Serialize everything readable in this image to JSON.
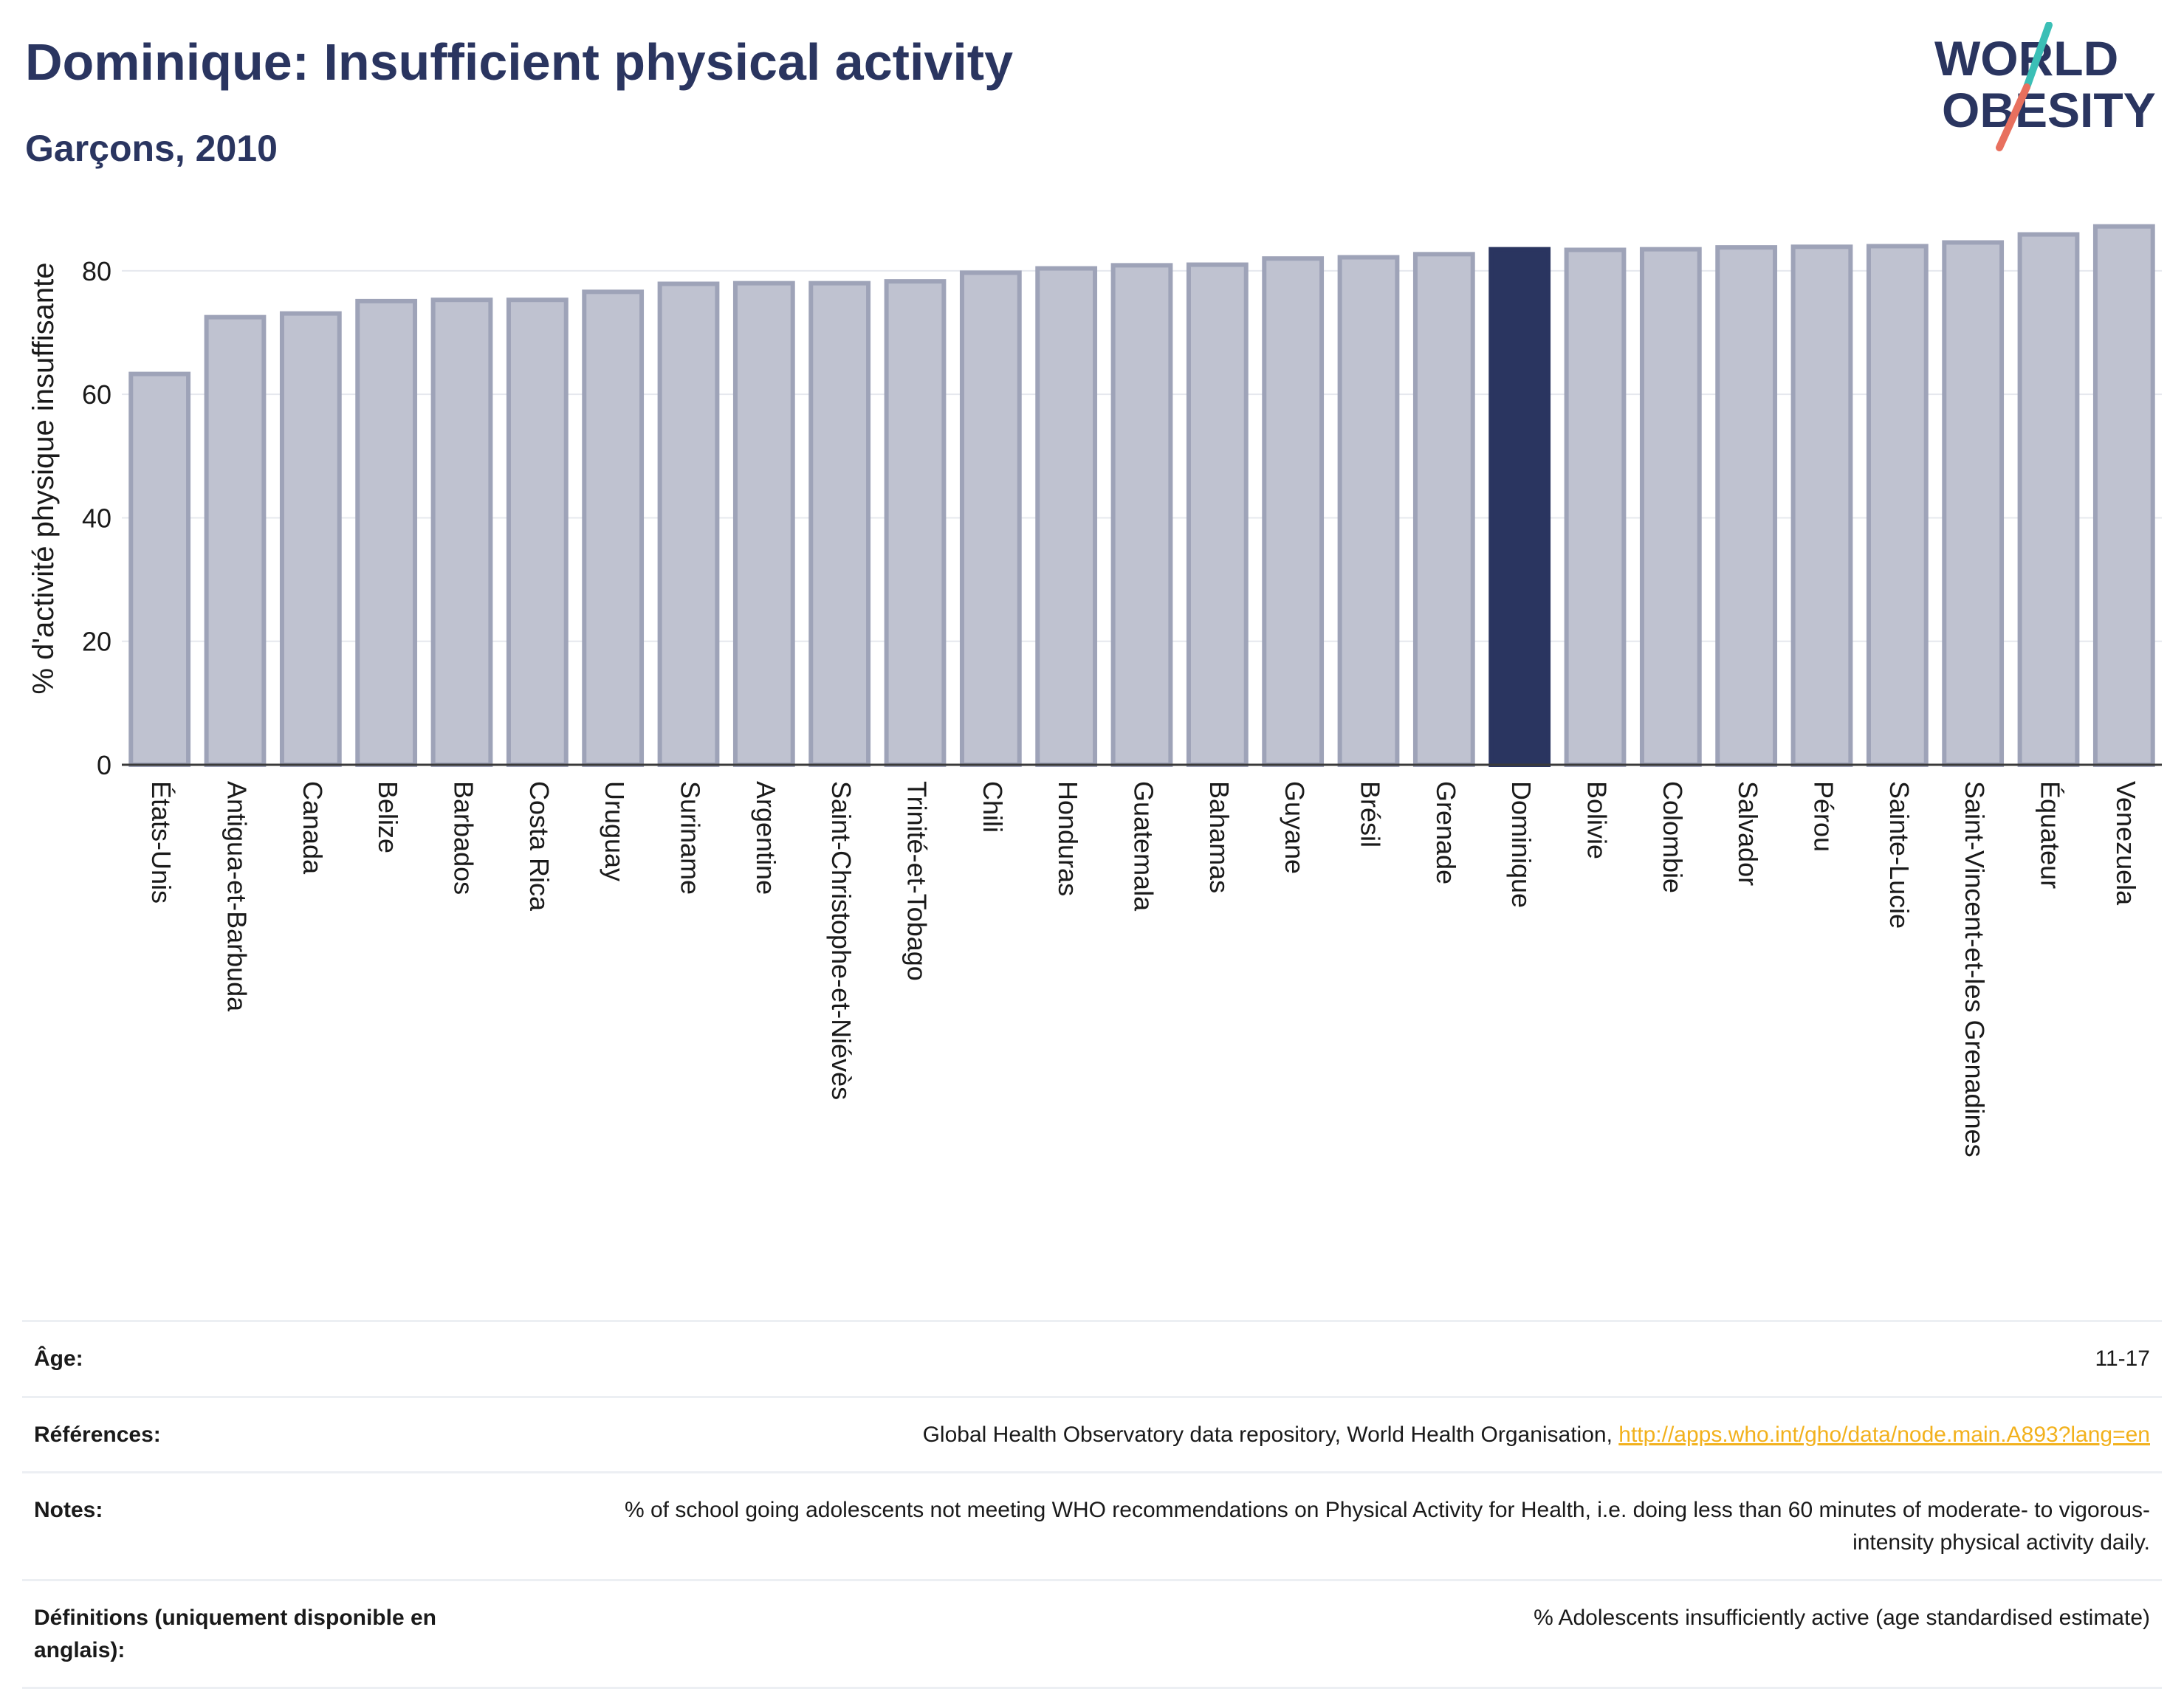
{
  "header": {
    "title": "Dominique: Insufficient physical activity",
    "subtitle": "Garçons, 2010"
  },
  "logo": {
    "line1": "WORLD",
    "line2": "OBESITY",
    "colors": {
      "text": "#2a3560",
      "slash_top": "#3bbfb6",
      "slash_bottom": "#e8705e"
    }
  },
  "chart_data": {
    "type": "bar",
    "ylabel": "% d'activité physique insuffisante",
    "xlabel": "",
    "ylim": [
      0,
      88
    ],
    "yticks": [
      0,
      20,
      40,
      60,
      80
    ],
    "grid": true,
    "highlight": "Dominique",
    "colors": {
      "bar": "#bfc2d0",
      "bar_edge": "#9ea3b8",
      "highlight": "#2a3560"
    },
    "categories": [
      "États-Unis",
      "Antigua-et-Barbuda",
      "Canada",
      "Belize",
      "Barbados",
      "Costa Rica",
      "Uruguay",
      "Suriname",
      "Argentine",
      "Saint-Christophe-et-Niévès",
      "Trinité-et-Tobago",
      "Chili",
      "Honduras",
      "Guatemala",
      "Bahamas",
      "Guyane",
      "Brésil",
      "Grenade",
      "Dominique",
      "Bolivie",
      "Colombie",
      "Salvador",
      "Pérou",
      "Sainte-Lucie",
      "Saint-Vincent-et-les Grenadines",
      "Équateur",
      "Venezuela"
    ],
    "values": [
      63.3,
      72.5,
      73.1,
      75.1,
      75.3,
      75.3,
      76.6,
      77.9,
      78.0,
      78.0,
      78.3,
      79.7,
      80.4,
      80.9,
      81.0,
      82.0,
      82.2,
      82.7,
      83.5,
      83.4,
      83.5,
      83.8,
      83.9,
      84.0,
      84.6,
      85.9,
      87.2
    ]
  },
  "meta": {
    "rows": [
      {
        "label": "Âge:",
        "value": "11-17"
      },
      {
        "label": "Références:",
        "value": "Global Health Observatory data repository, World Health Organisation, ",
        "link": "http://apps.who.int/gho/data/node.main.A893?lang=en"
      },
      {
        "label": "Notes:",
        "value": "% of school going adolescents not meeting WHO recommendations on Physical Activity for Health, i.e. doing less than 60 minutes of moderate- to vigorous-intensity physical activity daily."
      },
      {
        "label": "Définitions (uniquement disponible en anglais):",
        "value": "% Adolescents insufficiently active (age standardised estimate)"
      }
    ]
  }
}
